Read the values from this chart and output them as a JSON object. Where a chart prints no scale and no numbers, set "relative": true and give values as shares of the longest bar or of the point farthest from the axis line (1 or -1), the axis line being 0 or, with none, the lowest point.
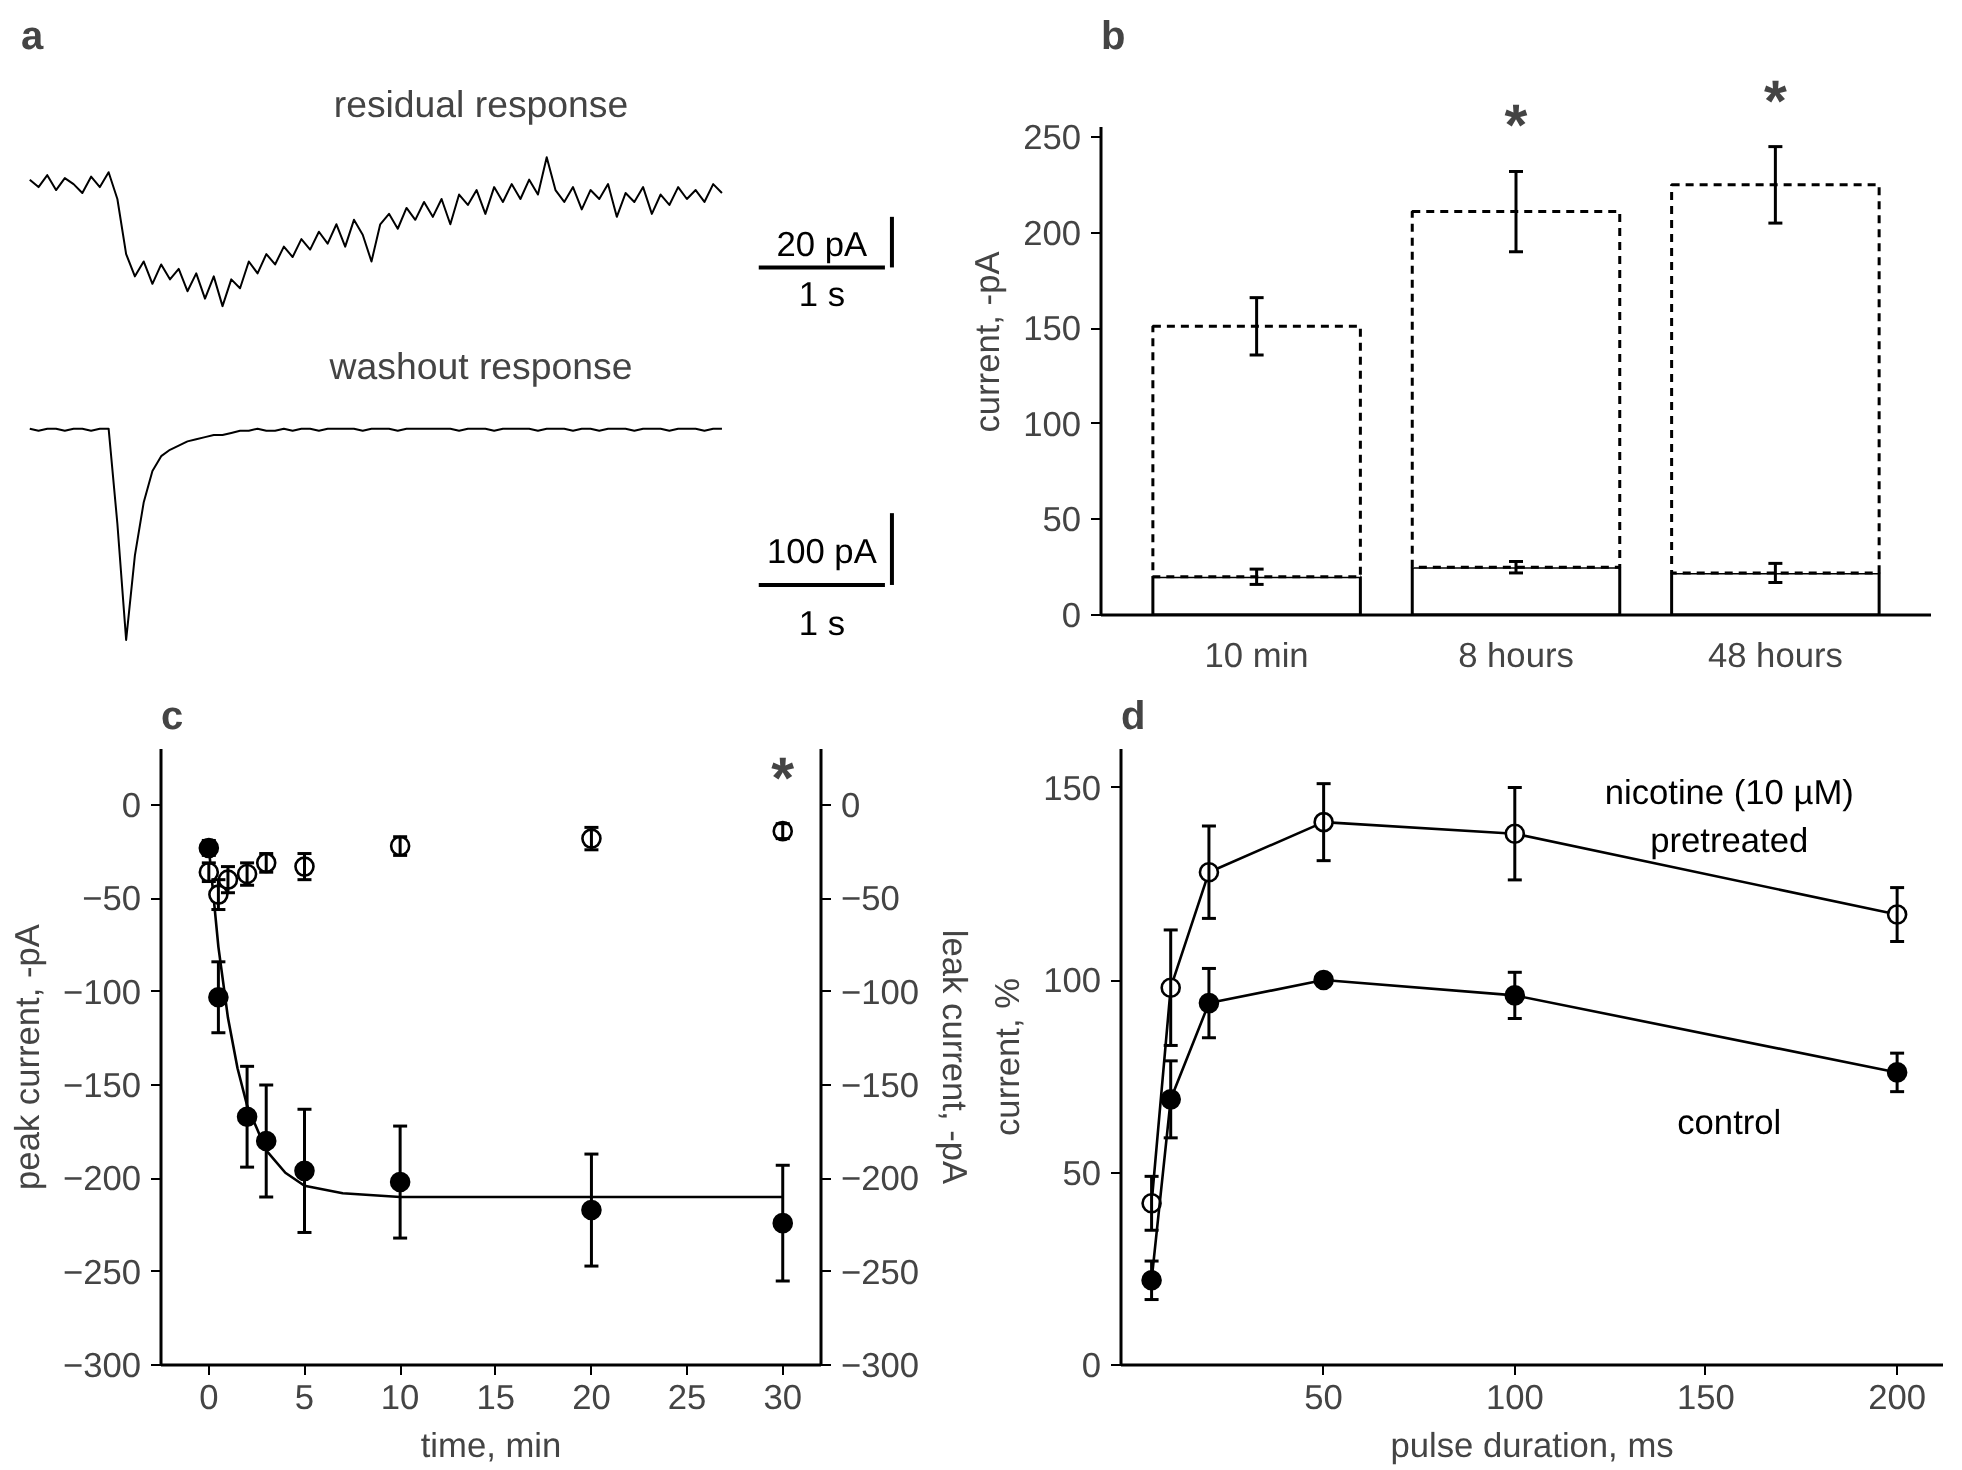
{
  "chart_data": [
    {
      "type": "line",
      "title": "a",
      "subtitle": "residual response",
      "relative": true,
      "annotations": [
        "20 pA",
        "1 s"
      ],
      "categories": [
        null,
        null,
        null,
        null,
        null,
        null,
        null,
        null,
        null,
        null,
        null,
        null,
        null,
        null,
        null,
        null,
        null,
        null,
        null,
        null,
        null,
        null,
        null,
        null,
        null,
        null,
        null,
        null,
        null,
        null,
        null,
        null,
        null,
        null,
        null,
        null,
        null,
        null,
        null,
        null,
        null,
        null,
        null,
        null,
        null,
        null,
        null,
        null,
        null,
        null,
        null,
        null,
        null,
        null,
        null,
        null,
        null,
        null,
        null,
        null,
        null,
        null,
        null,
        null,
        null,
        null,
        null,
        null,
        null,
        null,
        null,
        null,
        null,
        null,
        null,
        null,
        null,
        null,
        null,
        null
      ],
      "series": [
        {
          "color": "#000000",
          "values": [
            0.85,
            0.8,
            0.88,
            0.78,
            0.86,
            0.82,
            0.76,
            0.87,
            0.8,
            0.9,
            0.72,
            0.35,
            0.2,
            0.3,
            0.15,
            0.28,
            0.18,
            0.25,
            0.1,
            0.22,
            0.05,
            0.2,
            0.0,
            0.18,
            0.12,
            0.3,
            0.22,
            0.35,
            0.28,
            0.4,
            0.33,
            0.45,
            0.38,
            0.5,
            0.42,
            0.55,
            0.4,
            0.58,
            0.48,
            0.3,
            0.55,
            0.62,
            0.52,
            0.66,
            0.58,
            0.7,
            0.6,
            0.72,
            0.55,
            0.75,
            0.68,
            0.78,
            0.62,
            0.8,
            0.7,
            0.82,
            0.72,
            0.85,
            0.75,
            1.0,
            0.78,
            0.7,
            0.8,
            0.65,
            0.78,
            0.72,
            0.82,
            0.6,
            0.76,
            0.7,
            0.8,
            0.62,
            0.75,
            0.68,
            0.8,
            0.72,
            0.78,
            0.7,
            0.82,
            0.76
          ]
        }
      ]
    },
    {
      "type": "line",
      "subtitle": "washout response",
      "relative": true,
      "annotations": [
        "100 pA",
        "1 s"
      ],
      "categories": [
        null,
        null,
        null,
        null,
        null,
        null,
        null,
        null,
        null,
        null,
        null,
        null,
        null,
        null,
        null,
        null,
        null,
        null,
        null,
        null,
        null,
        null,
        null,
        null,
        null,
        null,
        null,
        null,
        null,
        null,
        null,
        null,
        null,
        null,
        null,
        null,
        null,
        null,
        null,
        null,
        null,
        null,
        null,
        null,
        null,
        null,
        null,
        null,
        null,
        null,
        null,
        null,
        null,
        null,
        null,
        null,
        null,
        null,
        null,
        null,
        null,
        null,
        null,
        null,
        null,
        null,
        null,
        null,
        null,
        null,
        null,
        null,
        null,
        null,
        null,
        null,
        null,
        null,
        null,
        null
      ],
      "series": [
        {
          "color": "#000000",
          "values": [
            1.0,
            0.99,
            1.0,
            1.0,
            0.99,
            1.0,
            1.0,
            0.99,
            1.0,
            1.0,
            0.55,
            0.0,
            0.4,
            0.65,
            0.8,
            0.87,
            0.9,
            0.92,
            0.94,
            0.95,
            0.96,
            0.97,
            0.97,
            0.98,
            0.99,
            0.99,
            1.0,
            0.99,
            0.99,
            1.0,
            0.99,
            1.0,
            1.0,
            0.99,
            1.0,
            1.0,
            1.0,
            1.0,
            0.99,
            1.0,
            1.0,
            1.0,
            0.99,
            1.0,
            1.0,
            1.0,
            1.0,
            1.0,
            1.0,
            0.99,
            1.0,
            1.0,
            1.0,
            0.99,
            1.0,
            1.0,
            1.0,
            1.0,
            0.99,
            1.0,
            1.0,
            1.0,
            0.99,
            1.0,
            1.0,
            0.99,
            1.0,
            1.0,
            1.0,
            0.99,
            1.0,
            1.0,
            1.0,
            0.99,
            1.0,
            1.0,
            1.0,
            0.99,
            1.0,
            1.0
          ]
        }
      ]
    },
    {
      "type": "bar",
      "title": "b",
      "ylabel": "current, -pA",
      "categories": [
        "10 min",
        "8 hours",
        "48 hours"
      ],
      "ylim": [
        0,
        255
      ],
      "yticks": [
        0,
        50,
        100,
        150,
        200,
        250
      ],
      "annotations": [
        "*",
        "*"
      ],
      "stacked": true,
      "series": [
        {
          "color": "#000000",
          "line_style": "solid",
          "values": [
            20,
            25,
            22
          ],
          "errors": [
            4,
            3,
            5
          ]
        },
        {
          "color": "#000000",
          "line_style": "dashed",
          "values": [
            131,
            186,
            203
          ],
          "errors": [
            15,
            21,
            20
          ]
        }
      ]
    },
    {
      "type": "scatter",
      "title": "c",
      "xlabel": "time, min",
      "ylabel": "peak current, -pA",
      "y2label": "leak current, -pA",
      "marker": "circle",
      "xlim": [
        -2.5,
        32
      ],
      "xticks": [
        0,
        5,
        10,
        15,
        20,
        25,
        30
      ],
      "ylim": [
        -300,
        30
      ],
      "yticks": [
        -300,
        -250,
        -200,
        -150,
        -100,
        -50,
        0
      ],
      "y2lim": [
        -300,
        30
      ],
      "y2ticks": [
        -300,
        -250,
        -200,
        -150,
        -100,
        -50,
        0
      ],
      "annotations": [
        "*"
      ],
      "series": [
        {
          "type": "line",
          "marker": "none",
          "color": "#000000",
          "x": [
            0,
            0.5,
            1,
            1.5,
            2,
            3,
            4,
            5,
            7,
            10,
            30
          ],
          "values": [
            -23,
            -76,
            -114,
            -141,
            -161,
            -185,
            -197,
            -204,
            -208,
            -210,
            -210
          ]
        },
        {
          "color": "#000000",
          "x": [
            0,
            0.5,
            2,
            3,
            5,
            10,
            20,
            30
          ],
          "values": [
            -23,
            -103,
            -167,
            -180,
            -196,
            -202,
            -217,
            -224
          ],
          "errors": [
            4,
            19,
            27,
            30,
            33,
            30,
            30,
            31
          ]
        },
        {
          "color": "#ffffff",
          "x": [
            0,
            0.5,
            1,
            2,
            3,
            5,
            10,
            20,
            30
          ],
          "values": [
            -36,
            -48,
            -40,
            -37,
            -31,
            -33,
            -22,
            -18,
            -14
          ],
          "errors": [
            5,
            8,
            7,
            6,
            5,
            7,
            5,
            6,
            4
          ]
        }
      ]
    },
    {
      "type": "line",
      "title": "d",
      "xlabel": "pulse duration, ms",
      "ylabel": "current, %",
      "marker": "circle",
      "xlim": [
        -3,
        212
      ],
      "xticks": [
        50,
        100,
        150,
        200
      ],
      "ylim": [
        0,
        160
      ],
      "yticks": [
        0,
        50,
        100,
        150
      ],
      "series": [
        {
          "name": "nicotine (10 µM)\npretreated",
          "color": "#ffffff",
          "x": [
            5,
            10,
            20,
            50,
            100,
            200
          ],
          "values": [
            42,
            98,
            128,
            141,
            138,
            117
          ],
          "errors": [
            7,
            15,
            12,
            10,
            12,
            7
          ]
        },
        {
          "name": "control",
          "color": "#000000",
          "x": [
            5,
            10,
            20,
            50,
            100,
            200
          ],
          "values": [
            22,
            69,
            94,
            100,
            96,
            76
          ],
          "errors": [
            5,
            10,
            9,
            null,
            6,
            5
          ]
        }
      ]
    }
  ]
}
